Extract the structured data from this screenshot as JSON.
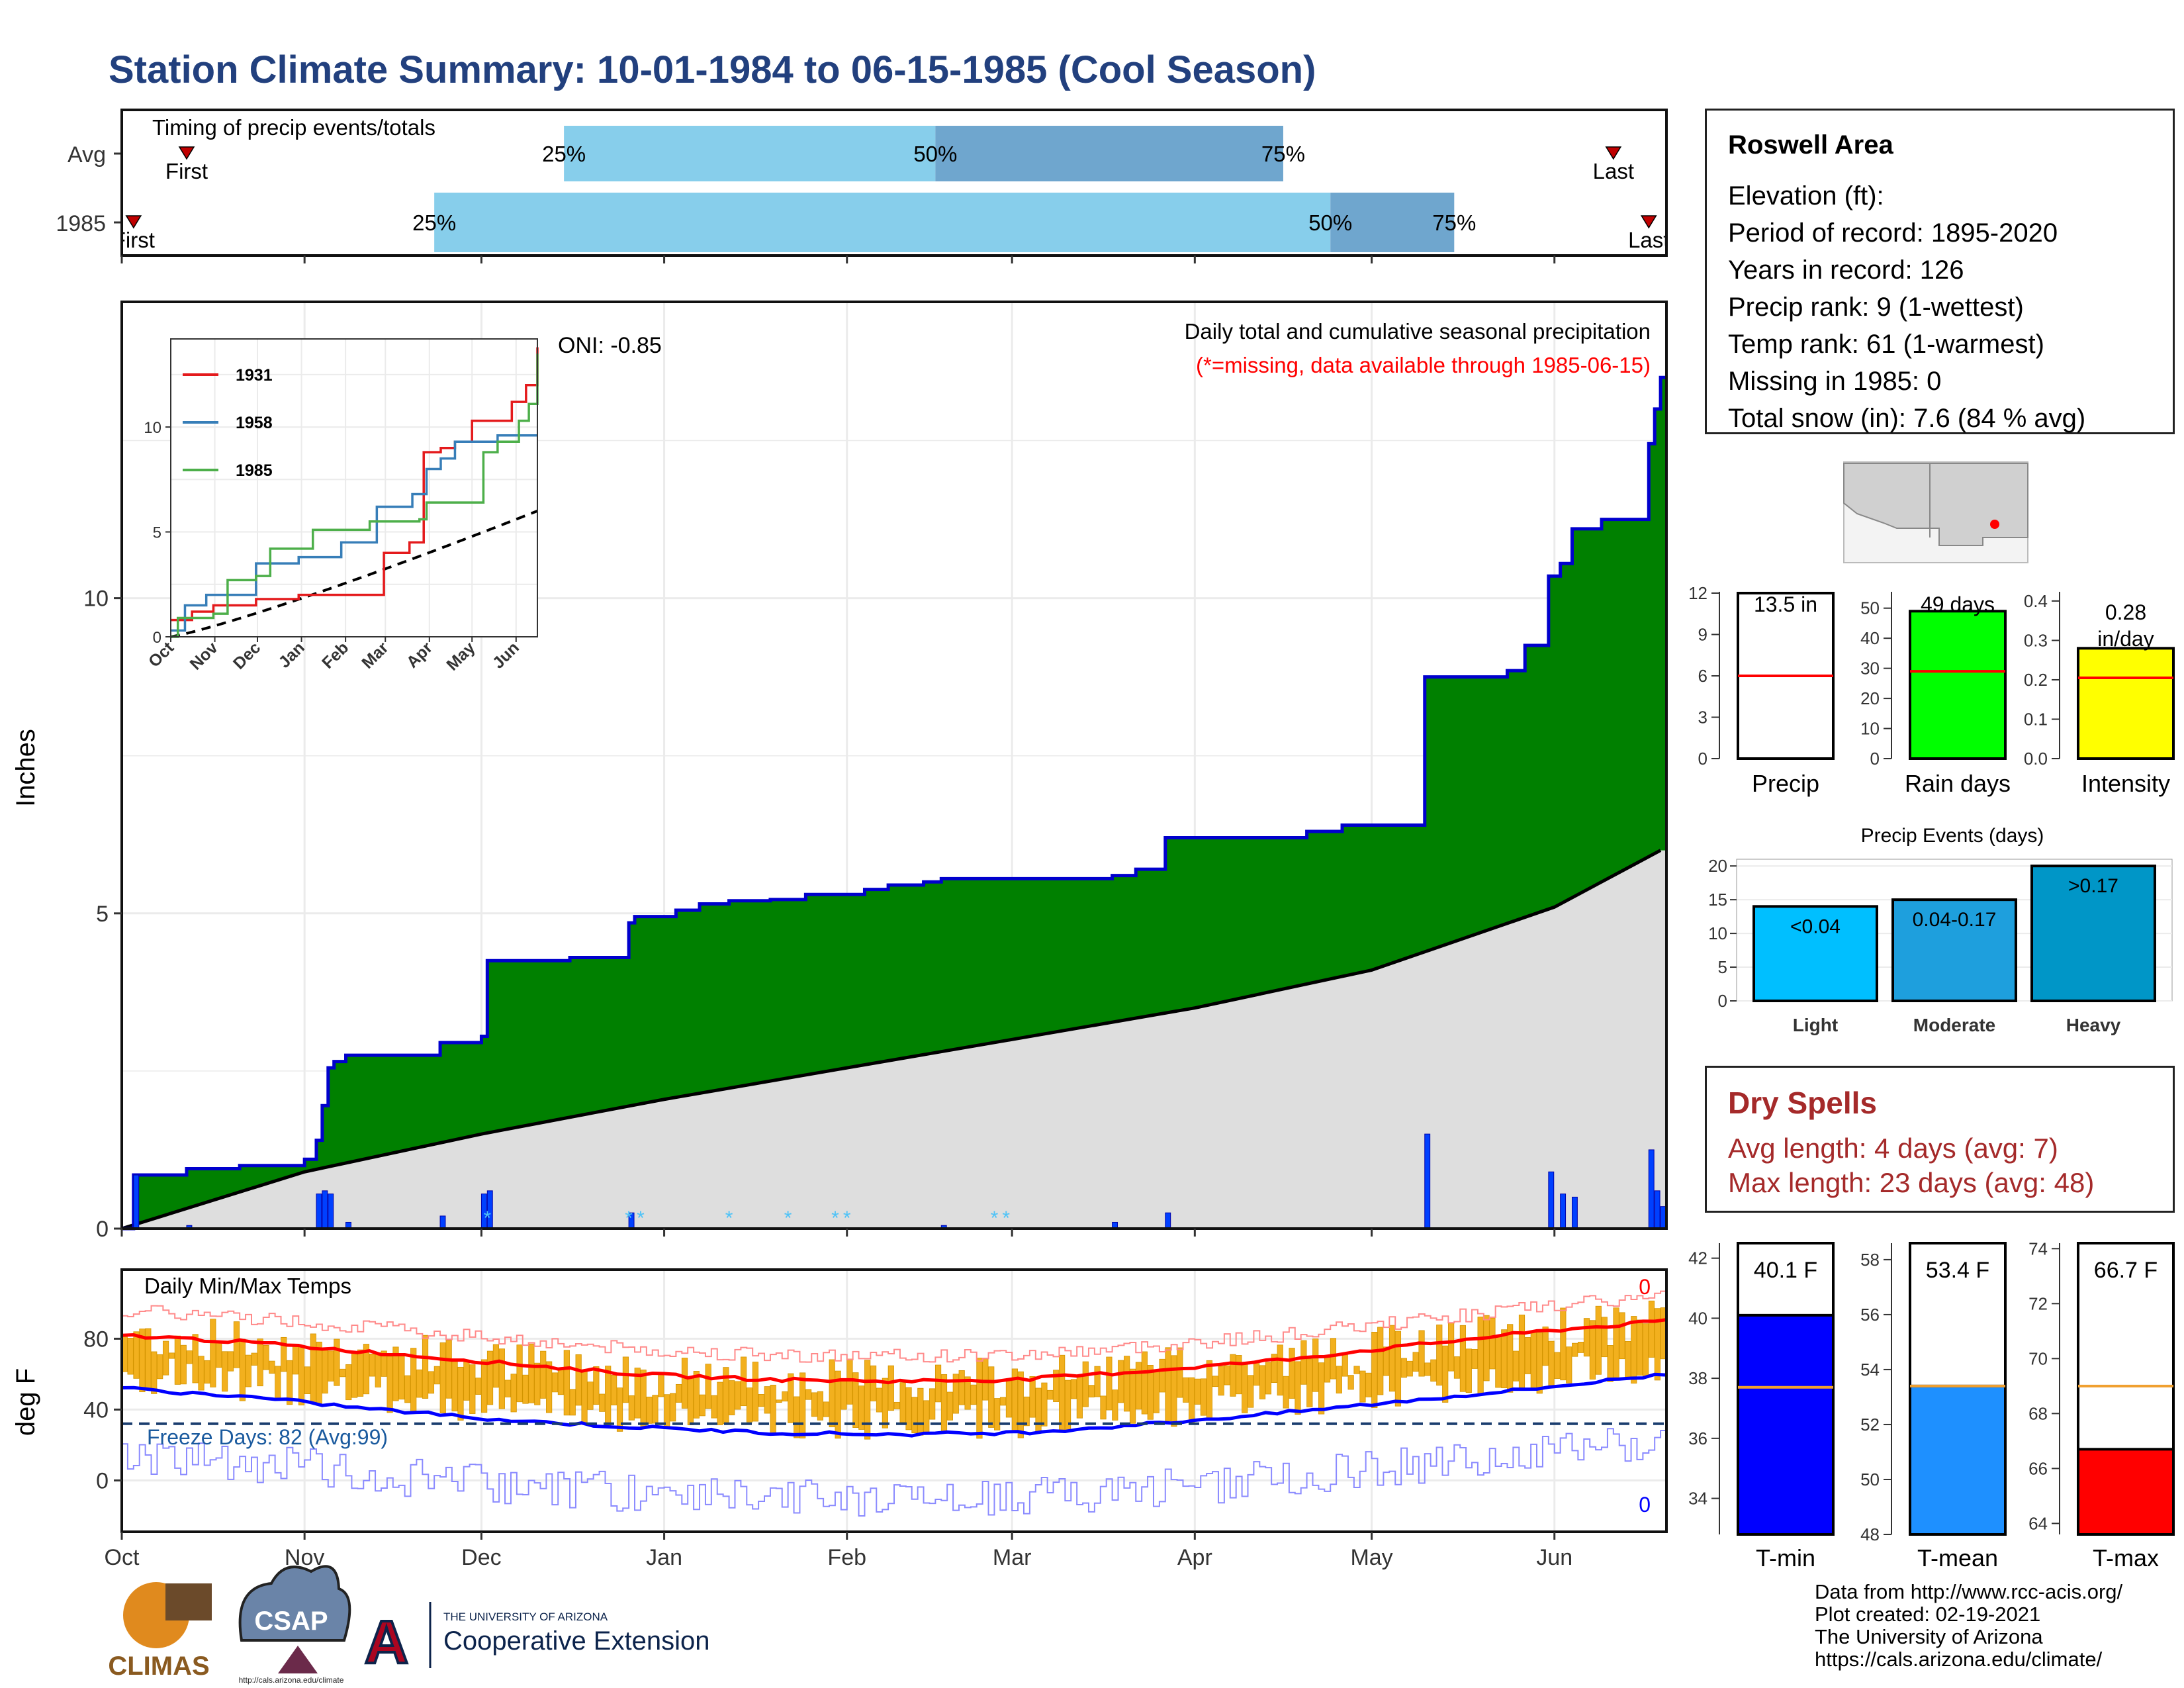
{
  "title": "Station Climate Summary: 10-01-1984 to 06-15-1985 (Cool Season)",
  "timing_panel": {
    "caption": "Timing of precip events/totals",
    "rows": [
      {
        "label": "Avg",
        "first_label": "First",
        "last_label": "Last",
        "p25": "25%",
        "p50": "50%",
        "p75": "75%"
      },
      {
        "label": "1985",
        "first_label": "First",
        "last_label": "Last",
        "p25": "25%",
        "p50": "50%",
        "p75": "75%"
      }
    ]
  },
  "main_panel": {
    "ylabel": "Inches",
    "oni": "ONI: -0.85",
    "caption": "Daily total and cumulative seasonal precipitation",
    "missing_note": "(*=missing, data available through 1985-06-15)",
    "yticks": [
      "0",
      "5",
      "10"
    ]
  },
  "inset": {
    "legend": [
      "1931",
      "1958",
      "1985"
    ],
    "yticks": [
      "0",
      "5",
      "10"
    ],
    "xticks": [
      "Oct",
      "Nov",
      "Dec",
      "Jan",
      "Feb",
      "Mar",
      "Apr",
      "May",
      "Jun"
    ]
  },
  "temp_panel": {
    "caption": "Daily Min/Max Temps",
    "ylabel": "deg F",
    "yticks": [
      "0",
      "40",
      "80"
    ],
    "freeze": "Freeze Days: 82 (Avg:99)",
    "max_count": "0",
    "min_count": "0"
  },
  "x_month_labels": [
    "Oct",
    "Nov",
    "Dec",
    "Jan",
    "Feb",
    "Mar",
    "Apr",
    "May",
    "Jun"
  ],
  "station": {
    "name": "Roswell Area",
    "lines": [
      "Elevation (ft):",
      "Period of record: 1895-2020",
      "Years in record: 126",
      "Precip rank: 9 (1-wettest)",
      "Temp rank: 61 (1-warmest)",
      "Missing in 1985: 0",
      "Total snow (in): 7.6 (84 % avg)"
    ]
  },
  "summary_bars": [
    {
      "label": "Precip",
      "value_text": "13.5 in",
      "value": 13.5,
      "avg": 6.0,
      "ymax": 12,
      "ticks": [
        "0",
        "3",
        "6",
        "9",
        "12"
      ],
      "color": "#ffffff"
    },
    {
      "label": "Rain days",
      "value_text": "49 days",
      "value": 49,
      "avg": 29,
      "ymax": 55,
      "ticks": [
        "0",
        "10",
        "20",
        "30",
        "40",
        "50"
      ],
      "color": "#00ff00"
    },
    {
      "label": "Intensity",
      "value_text": "0.28 in/day",
      "value": 0.28,
      "avg": 0.205,
      "ymax": 0.42,
      "ticks": [
        "0.0",
        "0.1",
        "0.2",
        "0.3",
        "0.4"
      ],
      "color": "#ffff00"
    }
  ],
  "precip_events": {
    "title": "Precip Events (days)",
    "categories": [
      "Light",
      "Moderate",
      "Heavy"
    ],
    "bar_labels": [
      "<0.04",
      "0.04-0.17",
      ">0.17"
    ],
    "values": [
      14,
      15,
      20
    ],
    "ticks": [
      "0",
      "5",
      "10",
      "15",
      "20"
    ],
    "colors": [
      "#00bfff",
      "#1e9fdd",
      "#0096c7"
    ]
  },
  "dry_spells": {
    "title": "Dry Spells",
    "avg_length": "Avg length: 4 days (avg: 7)",
    "max_length": "Max length: 23 days (avg: 48)"
  },
  "temp_bars": [
    {
      "label": "T-min",
      "value_text": "40.1 F",
      "value": 40.1,
      "avg": 37.7,
      "ymin": 32.8,
      "ymax": 42.5,
      "ticks": [
        "34",
        "36",
        "38",
        "40",
        "42"
      ],
      "color": "#0000ff"
    },
    {
      "label": "T-mean",
      "value_text": "53.4 F",
      "value": 53.4,
      "avg": 53.4,
      "ymin": 48,
      "ymax": 58.6,
      "ticks": [
        "48",
        "50",
        "52",
        "54",
        "56",
        "58"
      ],
      "color": "#1e90ff"
    },
    {
      "label": "T-max",
      "value_text": "66.7 F",
      "value": 66.7,
      "avg": 69.0,
      "ymin": 63.6,
      "ymax": 74.2,
      "ticks": [
        "64",
        "66",
        "68",
        "70",
        "72",
        "74"
      ],
      "color": "#ff0000"
    }
  ],
  "credits": [
    "Data from http://www.rcc-acis.org/",
    "Plot created: 02-19-2021",
    "The University of Arizona",
    "https://cals.arizona.edu/climate/"
  ],
  "logos": {
    "climas": "CLIMAS",
    "csap": "CSAP",
    "csap_url": "http://cals.arizona.edu/climate",
    "ua_small": "THE UNIVERSITY OF ARIZONA",
    "ua_big": "Cooperative Extension",
    "ua_letter": "A"
  },
  "chart_data": {
    "type": "area",
    "title": "Station Climate Summary: 10-01-1984 to 06-15-1985 (Cool Season)",
    "ylabel": "Inches",
    "x_range": [
      "1984-10-01",
      "1985-06-15"
    ],
    "ylim": [
      0,
      14.7
    ],
    "cumulative_1985_steps": [
      [
        "1984-10-01",
        0.0
      ],
      [
        "1984-10-03",
        0.85
      ],
      [
        "1984-10-12",
        0.95
      ],
      [
        "1984-10-21",
        1.0
      ],
      [
        "1984-11-01",
        1.1
      ],
      [
        "1984-11-03",
        1.4
      ],
      [
        "1984-11-04",
        1.95
      ],
      [
        "1984-11-05",
        2.55
      ],
      [
        "1984-11-06",
        2.65
      ],
      [
        "1984-11-08",
        2.75
      ],
      [
        "1984-11-24",
        2.95
      ],
      [
        "1984-12-01",
        3.05
      ],
      [
        "1984-12-02",
        4.25
      ],
      [
        "1984-12-16",
        4.3
      ],
      [
        "1984-12-26",
        4.85
      ],
      [
        "1984-12-27",
        4.95
      ],
      [
        "1985-01-03",
        5.05
      ],
      [
        "1985-01-07",
        5.15
      ],
      [
        "1985-01-12",
        5.2
      ],
      [
        "1985-01-19",
        5.22
      ],
      [
        "1985-01-25",
        5.3
      ],
      [
        "1985-02-04",
        5.38
      ],
      [
        "1985-02-08",
        5.45
      ],
      [
        "1985-02-14",
        5.5
      ],
      [
        "1985-02-17",
        5.55
      ],
      [
        "1985-03-18",
        5.6
      ],
      [
        "1985-03-22",
        5.7
      ],
      [
        "1985-03-27",
        6.2
      ],
      [
        "1985-04-20",
        6.3
      ],
      [
        "1985-04-26",
        6.4
      ],
      [
        "1985-05-10",
        8.75
      ],
      [
        "1985-05-24",
        8.85
      ],
      [
        "1985-05-27",
        9.25
      ],
      [
        "1985-05-31",
        10.35
      ],
      [
        "1985-06-02",
        10.55
      ],
      [
        "1985-06-04",
        11.1
      ],
      [
        "1985-06-09",
        11.25
      ],
      [
        "1985-06-17",
        12.45
      ],
      [
        "1985-06-18",
        13.0
      ],
      [
        "1985-06-19",
        13.5
      ]
    ],
    "average_cumulative": [
      [
        "1984-10-01",
        0.0
      ],
      [
        "1984-11-01",
        0.9
      ],
      [
        "1984-12-01",
        1.5
      ],
      [
        "1985-01-01",
        2.05
      ],
      [
        "1985-02-01",
        2.55
      ],
      [
        "1985-03-01",
        3.0
      ],
      [
        "1985-04-01",
        3.5
      ],
      [
        "1985-05-01",
        4.1
      ],
      [
        "1985-06-01",
        5.1
      ],
      [
        "1985-06-15",
        5.8
      ],
      [
        "1985-06-19",
        6.0
      ]
    ],
    "daily_precip": [
      [
        "1984-10-03",
        0.85
      ],
      [
        "1984-10-12",
        0.05
      ],
      [
        "1984-11-03",
        0.55
      ],
      [
        "1984-11-04",
        0.6
      ],
      [
        "1984-11-05",
        0.55
      ],
      [
        "1984-11-08",
        0.1
      ],
      [
        "1984-11-24",
        0.2
      ],
      [
        "1984-12-01",
        0.55
      ],
      [
        "1984-12-02",
        0.6
      ],
      [
        "1984-12-26",
        0.25
      ],
      [
        "1985-02-17",
        0.05
      ],
      [
        "1985-03-18",
        0.1
      ],
      [
        "1985-03-27",
        0.25
      ],
      [
        "1985-05-10",
        1.5
      ],
      [
        "1985-05-31",
        0.9
      ],
      [
        "1985-06-02",
        0.55
      ],
      [
        "1985-06-04",
        0.5
      ],
      [
        "1985-06-17",
        1.25
      ],
      [
        "1985-06-18",
        0.6
      ],
      [
        "1985-06-19",
        0.35
      ]
    ],
    "inset_series": [
      {
        "name": "1931",
        "color": "#e41a1c",
        "points": [
          [
            0,
            0.8
          ],
          [
            15,
            1.2
          ],
          [
            30,
            1.5
          ],
          [
            60,
            1.8
          ],
          [
            90,
            2.0
          ],
          [
            150,
            4.0
          ],
          [
            168,
            4.5
          ],
          [
            178,
            8.8
          ],
          [
            190,
            9.0
          ],
          [
            200,
            9.3
          ],
          [
            212,
            10.3
          ],
          [
            240,
            11.2
          ],
          [
            250,
            12.0
          ],
          [
            258,
            13.8
          ]
        ]
      },
      {
        "name": "1958",
        "color": "#377eb8",
        "points": [
          [
            0,
            0.3
          ],
          [
            10,
            1.5
          ],
          [
            25,
            2.0
          ],
          [
            60,
            3.5
          ],
          [
            90,
            3.8
          ],
          [
            120,
            4.5
          ],
          [
            145,
            6.2
          ],
          [
            170,
            6.8
          ],
          [
            180,
            8.0
          ],
          [
            190,
            8.5
          ],
          [
            200,
            9.3
          ],
          [
            230,
            9.6
          ],
          [
            258,
            9.6
          ]
        ]
      },
      {
        "name": "1985",
        "color": "#4daf4a",
        "points": [
          [
            0,
            0.0
          ],
          [
            5,
            0.9
          ],
          [
            30,
            1.1
          ],
          [
            40,
            2.7
          ],
          [
            60,
            2.9
          ],
          [
            70,
            4.2
          ],
          [
            100,
            5.1
          ],
          [
            140,
            5.5
          ],
          [
            175,
            5.6
          ],
          [
            180,
            6.4
          ],
          [
            220,
            8.8
          ],
          [
            230,
            9.3
          ],
          [
            245,
            10.3
          ],
          [
            252,
            11.1
          ],
          [
            258,
            13.5
          ]
        ]
      }
    ],
    "daily_max_temp_normal": [
      82,
      78,
      72,
      66,
      60,
      57,
      56,
      57,
      62,
      68,
      76,
      84,
      90
    ],
    "daily_min_temp_normal": [
      52,
      47,
      40,
      34,
      30,
      27,
      26,
      27,
      32,
      38,
      45,
      52,
      60
    ]
  }
}
